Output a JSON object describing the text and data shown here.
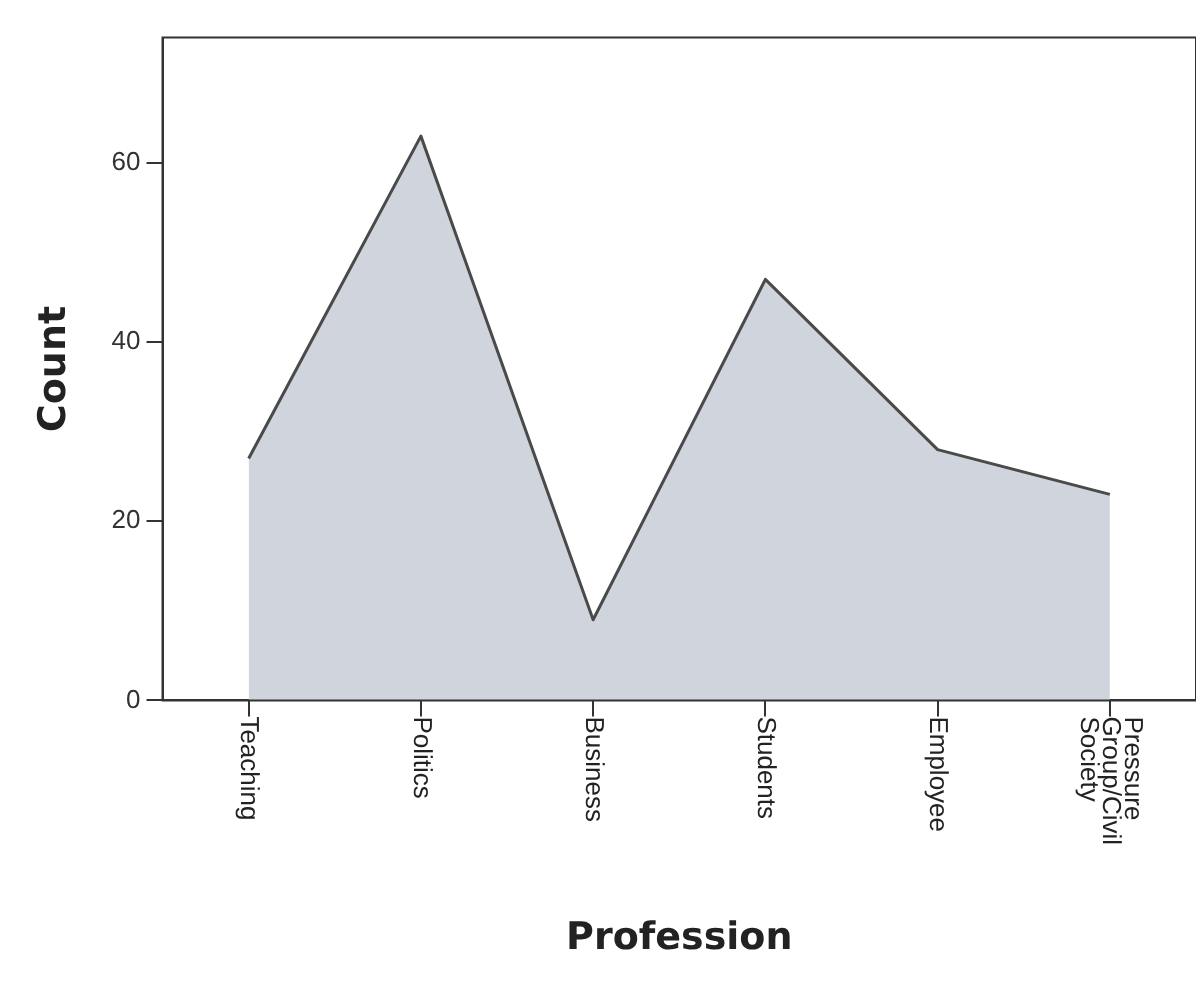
{
  "chart_data": {
    "type": "area",
    "xlabel": "Profession",
    "ylabel": "Count",
    "categories": [
      "Teaching",
      "Politics",
      "Business",
      "Students",
      "Employee",
      "Pressure Group/Civil Society"
    ],
    "series": [
      {
        "color": "#d0d4dc",
        "values": [
          27,
          63,
          9,
          47,
          28,
          23
        ]
      }
    ],
    "ylim": [
      0,
      74
    ],
    "yticks": [
      0,
      20,
      40,
      60
    ],
    "grid": false,
    "legend": false,
    "marker": "none",
    "line_style": "solid"
  }
}
